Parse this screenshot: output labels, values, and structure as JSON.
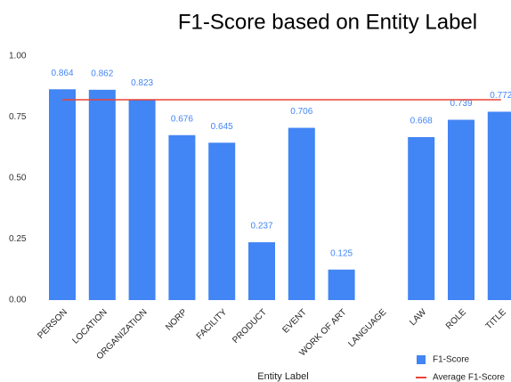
{
  "chart_data": {
    "type": "bar",
    "title": "F1-Score based on Entity Label",
    "x_label": "Entity Label",
    "categories": [
      "PERSON",
      "LOCATION",
      "ORGANIZATION",
      "NORP",
      "FACILITY",
      "PRODUCT",
      "EVENT",
      "WORK OF ART",
      "LANGUAGE",
      "LAW",
      "ROLE",
      "TITLE"
    ],
    "series": [
      {
        "name": "F1-Score",
        "type": "bar",
        "color": "#4285f4",
        "values": [
          0.864,
          0.862,
          0.823,
          0.676,
          0.645,
          0.237,
          0.706,
          0.125,
          null,
          0.668,
          0.739,
          0.772
        ]
      },
      {
        "name": "Average F1-Score",
        "type": "line",
        "color": "#ea4335",
        "values": [
          0.821,
          0.821,
          0.821,
          0.821,
          0.821,
          0.821,
          0.821,
          0.821,
          0.821,
          0.821,
          0.821,
          0.821
        ]
      }
    ],
    "ylim": [
      0,
      1
    ],
    "yticks": [
      {
        "value": 0,
        "label": "0.00"
      },
      {
        "value": 0.25,
        "label": "0.25"
      },
      {
        "value": 0.5,
        "label": "0.50"
      },
      {
        "value": 0.75,
        "label": "0.75"
      },
      {
        "value": 1,
        "label": "1.00"
      }
    ],
    "grid": false,
    "legend": "bottom-right"
  }
}
